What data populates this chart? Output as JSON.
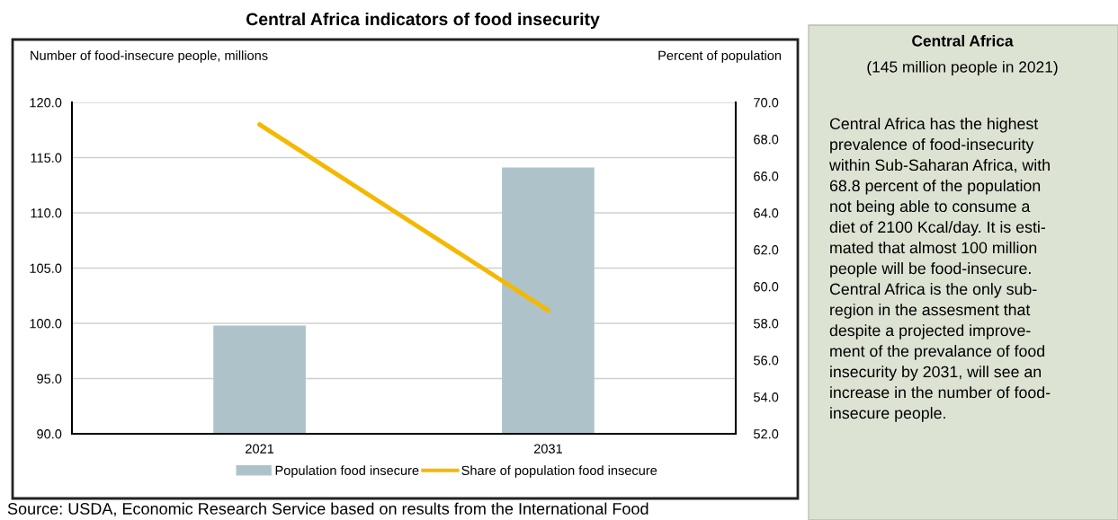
{
  "chart_data": [
    {
      "type": "bar",
      "title": "Central Africa indicators of food insecurity",
      "categories": [
        "2021",
        "2031"
      ],
      "series": [
        {
          "name": "Population food insecure",
          "type": "bar",
          "color": "#adc3c9",
          "values": [
            99.8,
            114.1
          ]
        },
        {
          "name": "Share of population food insecure",
          "type": "line",
          "axis": "y2",
          "color": "#f5b800",
          "values": [
            68.8,
            58.7
          ]
        }
      ],
      "ylabel": "Number of food-insecure people, millions",
      "y2label": "Percent of population",
      "ylim": [
        90,
        120
      ],
      "yticks": [
        {
          "value": 90,
          "label": "90.0"
        },
        {
          "value": 95,
          "label": "95.0"
        },
        {
          "value": 100,
          "label": "100.0"
        },
        {
          "value": 105,
          "label": "105.0"
        },
        {
          "value": 110,
          "label": "110.0"
        },
        {
          "value": 115,
          "label": "115.0"
        },
        {
          "value": 120,
          "label": "120.0"
        }
      ],
      "y2lim": [
        52,
        70
      ],
      "y2ticks": [
        {
          "value": 52,
          "label": "52.0"
        },
        {
          "value": 54,
          "label": "54.0"
        },
        {
          "value": 56,
          "label": "56.0"
        },
        {
          "value": 58,
          "label": "58.0"
        },
        {
          "value": 60,
          "label": "60.0"
        },
        {
          "value": 62,
          "label": "62.0"
        },
        {
          "value": 64,
          "label": "64.0"
        },
        {
          "value": 66,
          "label": "66.0"
        },
        {
          "value": 68,
          "label": "68.0"
        },
        {
          "value": 70,
          "label": "70.0"
        }
      ],
      "grid": "y",
      "legend": "bottom",
      "annotations": [
        "Source: USDA, Economic Research Service based on results from the International Food"
      ]
    },
    {
      "type": "other",
      "title": "Central Africa",
      "subtitle": "(145 million people in 2021)",
      "annotations": [
        "Central Africa has the highest\nprevalence of food-insecurity\nwithin Sub-Saharan Africa, with\n68.8 percent of the population\nnot being able to consume a\ndiet of 2100 Kcal/day. It is esti-\nmated that almost 100 million\npeople will be food-insecure.\nCentral Africa is the only sub-\nregion in the assesment that\ndespite a projected improve-\nment of the prevalance of food\ninsecurity by 2031, will see an\nincrease in the number of food-\ninsecure people."
      ]
    }
  ]
}
